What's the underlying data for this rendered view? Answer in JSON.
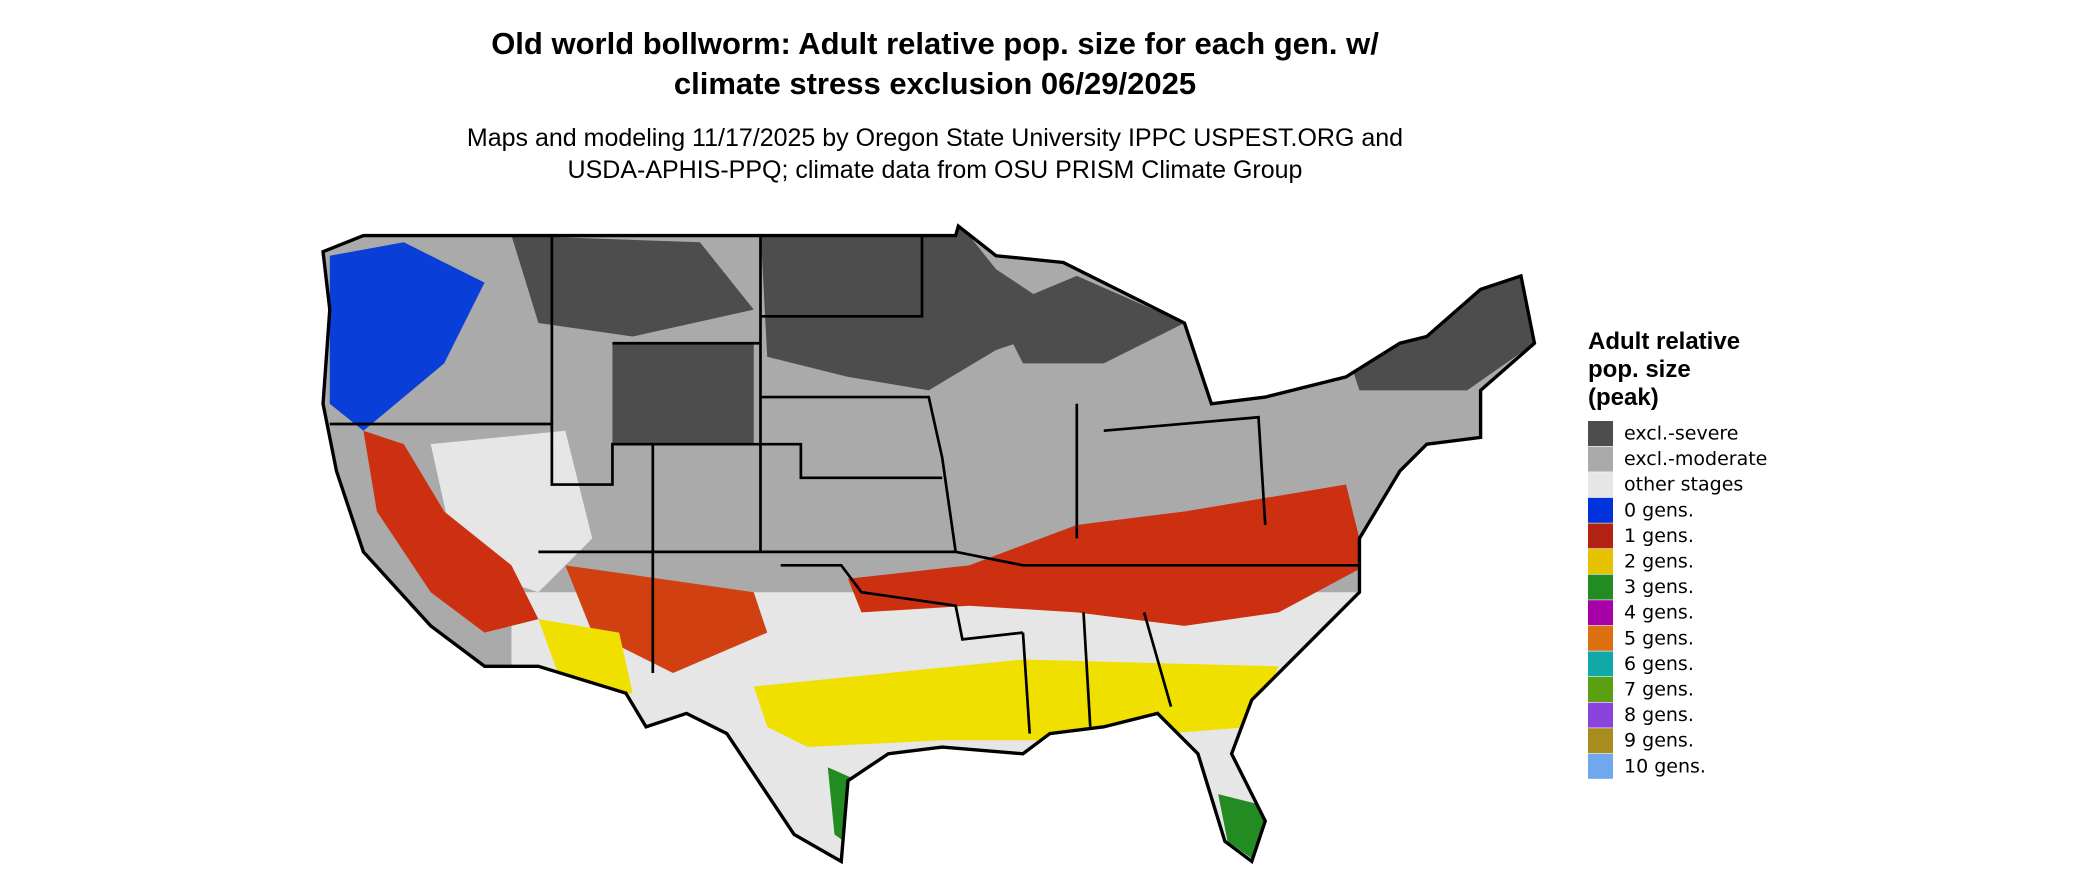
{
  "title": "Old world bollworm: Adult relative pop. size for each gen. w/\nclimate stress exclusion 06/29/2025",
  "subtitle": "Maps and modeling 11/17/2025 by Oregon State University IPPC USPEST.ORG and\nUSDA-APHIS-PPQ; climate data from OSU PRISM Climate Group",
  "legend": {
    "title": "Adult relative\npop. size\n(peak)",
    "items": [
      {
        "label": "excl.-severe",
        "color": "#4d4d4d"
      },
      {
        "label": "excl.-moderate",
        "color": "#aaaaaa"
      },
      {
        "label": "other stages",
        "color": "#e6e6e6"
      },
      {
        "label": "0 gens.",
        "color": "#0033dd"
      },
      {
        "label": "1 gens.",
        "color": "#b22212"
      },
      {
        "label": "2 gens.",
        "color": "#e6c200"
      },
      {
        "label": "3 gens.",
        "color": "#228b22"
      },
      {
        "label": "4 gens.",
        "color": "#a800a8"
      },
      {
        "label": "5 gens.",
        "color": "#dd7010"
      },
      {
        "label": "6 gens.",
        "color": "#10a8a8"
      },
      {
        "label": "7 gens.",
        "color": "#5aa010"
      },
      {
        "label": "8 gens.",
        "color": "#8844dd"
      },
      {
        "label": "9 gens.",
        "color": "#a88c20"
      },
      {
        "label": "10 gens.",
        "color": "#70a8ee"
      }
    ]
  }
}
